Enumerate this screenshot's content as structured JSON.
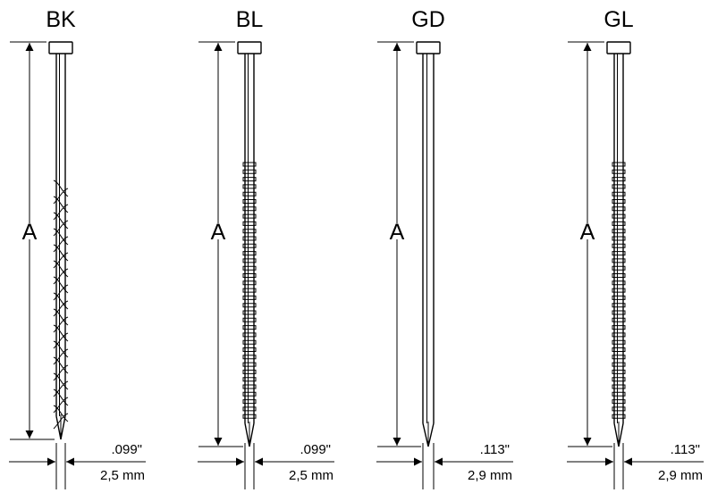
{
  "nails": [
    {
      "type": "BK",
      "length_label": "A",
      "diameter_in": ".099\"",
      "diameter_mm": "2,5 mm",
      "shank": "screw"
    },
    {
      "type": "BL",
      "length_label": "A",
      "diameter_in": ".099\"",
      "diameter_mm": "2,5 mm",
      "shank": "ring"
    },
    {
      "type": "GD",
      "length_label": "A",
      "diameter_in": ".113\"",
      "diameter_mm": "2,9 mm",
      "shank": "smooth"
    },
    {
      "type": "GL",
      "length_label": "A",
      "diameter_in": ".113\"",
      "diameter_mm": "2,9 mm",
      "shank": "ring"
    }
  ]
}
